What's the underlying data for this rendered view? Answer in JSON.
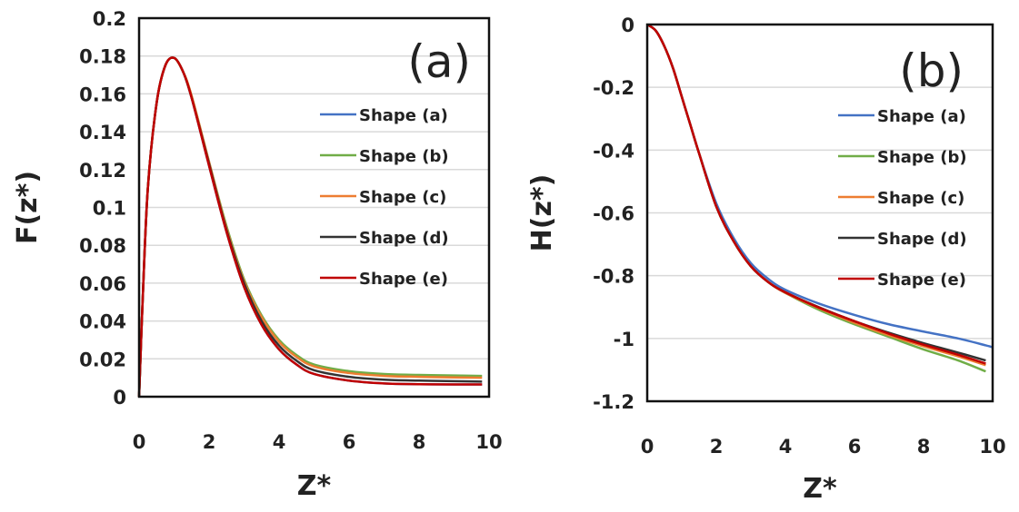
{
  "chart_data": [
    {
      "type": "line",
      "panel_label": "(a)",
      "xlabel": "Z*",
      "ylabel": "F(z*)",
      "xlim": [
        0,
        10
      ],
      "ylim": [
        0,
        0.2
      ],
      "xticks": [
        "0",
        "2",
        "4",
        "6",
        "8",
        "10"
      ],
      "yticks": [
        "0",
        "0.02",
        "0.04",
        "0.06",
        "0.08",
        "0.1",
        "0.12",
        "0.14",
        "0.16",
        "0.18",
        "0.2"
      ],
      "grid": "horizontal",
      "legend_position": "right",
      "x": [
        0,
        0.1,
        0.25,
        0.5,
        0.75,
        1,
        1.25,
        1.5,
        2,
        2.5,
        3,
        3.5,
        4,
        4.5,
        5,
        6,
        7,
        8,
        9,
        9.8
      ],
      "series": [
        {
          "name": "Shape (a)",
          "color": "#4472c4",
          "values": [
            0,
            0.05,
            0.11,
            0.155,
            0.175,
            0.179,
            0.172,
            0.158,
            0.122,
            0.087,
            0.058,
            0.038,
            0.025,
            0.017,
            0.012,
            0.0085,
            0.007,
            0.0066,
            0.0065,
            0.0065
          ]
        },
        {
          "name": "Shape (b)",
          "color": "#70ad47",
          "values": [
            0,
            0.05,
            0.11,
            0.155,
            0.175,
            0.179,
            0.172,
            0.159,
            0.124,
            0.09,
            0.062,
            0.043,
            0.03,
            0.022,
            0.017,
            0.0135,
            0.012,
            0.0115,
            0.0112,
            0.011
          ]
        },
        {
          "name": "Shape (c)",
          "color": "#ed7d31",
          "values": [
            0,
            0.05,
            0.11,
            0.155,
            0.175,
            0.179,
            0.172,
            0.159,
            0.124,
            0.089,
            0.061,
            0.042,
            0.029,
            0.021,
            0.016,
            0.0125,
            0.011,
            0.0105,
            0.0102,
            0.01
          ]
        },
        {
          "name": "Shape (d)",
          "color": "#333333",
          "values": [
            0,
            0.05,
            0.11,
            0.155,
            0.175,
            0.179,
            0.172,
            0.158,
            0.123,
            0.088,
            0.06,
            0.04,
            0.027,
            0.019,
            0.014,
            0.0105,
            0.009,
            0.0085,
            0.0082,
            0.008
          ]
        },
        {
          "name": "Shape (e)",
          "color": "#c00000",
          "values": [
            0,
            0.05,
            0.11,
            0.155,
            0.175,
            0.179,
            0.172,
            0.158,
            0.122,
            0.087,
            0.058,
            0.038,
            0.025,
            0.017,
            0.012,
            0.0085,
            0.007,
            0.0066,
            0.0065,
            0.0065
          ]
        }
      ]
    },
    {
      "type": "line",
      "panel_label": "(b)",
      "xlabel": "Z*",
      "ylabel": "H(z*)",
      "xlim": [
        0,
        10
      ],
      "ylim": [
        -1.2,
        0
      ],
      "xticks": [
        "0",
        "2",
        "4",
        "6",
        "8",
        "10"
      ],
      "yticks": [
        "0",
        "-0.2",
        "-0.4",
        "-0.6",
        "-0.8",
        "-1",
        "-1.2"
      ],
      "grid": "horizontal",
      "legend_position": "right",
      "x": [
        0,
        0.25,
        0.5,
        0.75,
        1,
        1.25,
        1.5,
        2,
        2.5,
        3,
        3.5,
        4,
        5,
        6,
        7,
        8,
        9,
        9.8,
        10
      ],
      "series": [
        {
          "name": "Shape (a)",
          "color": "#4472c4",
          "values": [
            0,
            -0.02,
            -0.07,
            -0.14,
            -0.23,
            -0.32,
            -0.41,
            -0.57,
            -0.68,
            -0.76,
            -0.81,
            -0.845,
            -0.89,
            -0.925,
            -0.955,
            -0.978,
            -1.0,
            -1.022,
            -1.028
          ]
        },
        {
          "name": "Shape (b)",
          "color": "#70ad47",
          "values": [
            0,
            -0.02,
            -0.07,
            -0.14,
            -0.23,
            -0.32,
            -0.41,
            -0.58,
            -0.69,
            -0.77,
            -0.82,
            -0.855,
            -0.91,
            -0.955,
            -0.995,
            -1.035,
            -1.07,
            -1.105,
            null
          ]
        },
        {
          "name": "Shape (c)",
          "color": "#ed7d31",
          "values": [
            0,
            -0.02,
            -0.07,
            -0.14,
            -0.23,
            -0.32,
            -0.41,
            -0.58,
            -0.69,
            -0.77,
            -0.82,
            -0.855,
            -0.905,
            -0.95,
            -0.99,
            -1.025,
            -1.057,
            -1.085,
            null
          ]
        },
        {
          "name": "Shape (d)",
          "color": "#333333",
          "values": [
            0,
            -0.02,
            -0.07,
            -0.14,
            -0.23,
            -0.32,
            -0.41,
            -0.58,
            -0.69,
            -0.77,
            -0.82,
            -0.853,
            -0.902,
            -0.945,
            -0.982,
            -1.015,
            -1.045,
            -1.07,
            null
          ]
        },
        {
          "name": "Shape (e)",
          "color": "#c00000",
          "values": [
            0,
            -0.02,
            -0.07,
            -0.14,
            -0.23,
            -0.32,
            -0.41,
            -0.58,
            -0.69,
            -0.77,
            -0.82,
            -0.853,
            -0.903,
            -0.945,
            -0.985,
            -1.02,
            -1.052,
            -1.08,
            null
          ]
        }
      ]
    }
  ]
}
